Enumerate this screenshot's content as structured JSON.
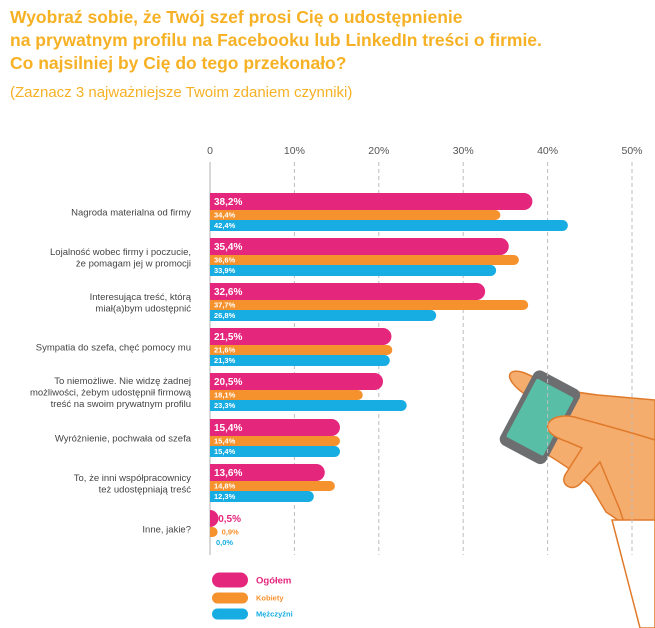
{
  "chart_data": {
    "type": "bar",
    "title_lines": [
      "Wyobraź sobie, że Twój szef prosi Cię o udostępnienie",
      "na prywatnym profilu na Facebooku lub LinkedIn treści o firmie.",
      "Co najsilniej by Cię do tego przekonało?"
    ],
    "subtitle": "(Zaznacz 3 najważniejsze Twoim zdaniem czynniki)",
    "xlim": [
      0,
      50
    ],
    "ticks": [
      "0",
      "10%",
      "20%",
      "30%",
      "40%",
      "50%"
    ],
    "tick_values": [
      0,
      10,
      20,
      30,
      40,
      50
    ],
    "categories": [
      [
        "Nagroda materialna od firmy"
      ],
      [
        "Lojalność wobec firmy i poczucie,",
        "że pomagam jej w promocji"
      ],
      [
        "Interesująca treść, którą",
        "miał(a)bym udostępnić"
      ],
      [
        "Sympatia do szefa, chęć pomocy mu"
      ],
      [
        "To niemożliwe. Nie widzę żadnej",
        "możliwości, żebym udostępnił firmową",
        "treść na swoim prywatnym profilu"
      ],
      [
        "Wyróżnienie, pochwała od szefa"
      ],
      [
        "To, że inni współpracownicy",
        "też udostępniają treść"
      ],
      [
        "Inne, jakie?"
      ]
    ],
    "series": [
      {
        "name": "Ogółem",
        "color": "#e5267d",
        "values": [
          38.2,
          35.4,
          32.6,
          21.5,
          20.5,
          15.4,
          13.6,
          0.5
        ],
        "labels": [
          "38,2%",
          "35,4%",
          "32,6%",
          "21,5%",
          "20,5%",
          "15,4%",
          "13,6%",
          "0,5%"
        ]
      },
      {
        "name": "Kobiety",
        "color": "#f6922d",
        "values": [
          34.4,
          36.6,
          37.7,
          21.6,
          18.1,
          15.4,
          14.8,
          0.9
        ],
        "labels": [
          "34,4%",
          "36,6%",
          "37,7%",
          "21,6%",
          "18,1%",
          "15,4%",
          "14,8%",
          "0,9%"
        ]
      },
      {
        "name": "Mężczyźni",
        "color": "#17ade3",
        "values": [
          42.4,
          33.9,
          26.8,
          21.3,
          23.3,
          15.4,
          12.3,
          0.0
        ],
        "labels": [
          "42,4%",
          "33,9%",
          "26,8%",
          "21,3%",
          "23,3%",
          "15,4%",
          "12,3%",
          "0,0%"
        ]
      }
    ],
    "legend_position": "bottom-left"
  },
  "colors": {
    "title": "#f6b125",
    "grid": "#bdbdbd",
    "skin": "#f5ad6e",
    "skin_outline": "#e07a2b",
    "phone": "#6d6e70",
    "screen": "#58bfa6"
  }
}
